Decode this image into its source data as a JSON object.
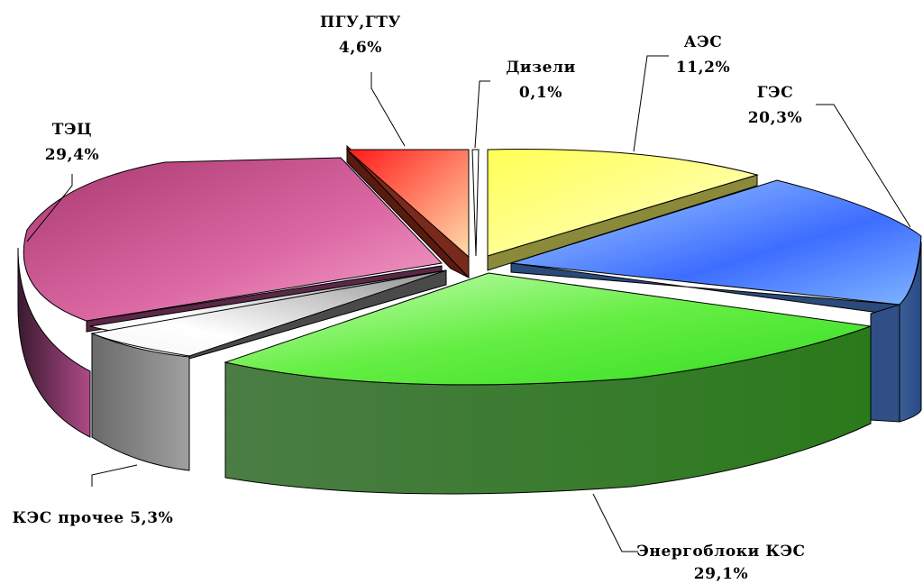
{
  "chart_data": {
    "type": "pie",
    "style": "3d-exploded",
    "title": "",
    "slices": [
      {
        "name": "АЭС",
        "value": 11.2,
        "label": "11,2%",
        "color": "#ffff66"
      },
      {
        "name": "ГЭС",
        "value": 20.3,
        "label": "20,3%",
        "color": "#5b9bff"
      },
      {
        "name": "Энергоблоки КЭС",
        "value": 29.1,
        "label": "29,1%",
        "color": "#66ee55"
      },
      {
        "name": "КЭС прочее",
        "value": 5.3,
        "label": "5,3%",
        "color": "#d8d8d8"
      },
      {
        "name": "ТЭЦ",
        "value": 29.4,
        "label": "29,4%",
        "color": "#dd6aa5"
      },
      {
        "name": "ПГУ,ГТУ",
        "value": 4.6,
        "label": "4,6%",
        "color": "#ff5533"
      },
      {
        "name": "Дизели",
        "value": 0.1,
        "label": "0,1%",
        "color": "#ffffff"
      }
    ],
    "labels": {
      "aes": {
        "line1": "АЭС",
        "line2": "11,2%"
      },
      "ges": {
        "line1": "ГЭС",
        "line2": "20,3%"
      },
      "energo": {
        "line1": "Энергоблоки КЭС",
        "line2": "29,1%"
      },
      "kes": {
        "line1": "КЭС прочее 5,3%"
      },
      "tec": {
        "line1": "ТЭЦ",
        "line2": "29,4%"
      },
      "pgu": {
        "line1": "ПГУ,ГТУ",
        "line2": "4,6%"
      },
      "diesel": {
        "line1": "Дизели",
        "line2": "0,1%"
      }
    }
  }
}
